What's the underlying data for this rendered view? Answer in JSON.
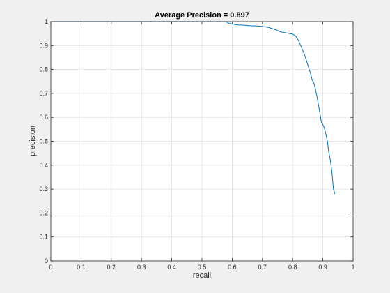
{
  "chart_data": {
    "type": "line",
    "title": "Average Precision = 0.897",
    "xlabel": "recall",
    "ylabel": "precision",
    "xlim": [
      0,
      1
    ],
    "ylim": [
      0,
      1
    ],
    "xticks": [
      0,
      0.1,
      0.2,
      0.3,
      0.4,
      0.5,
      0.6,
      0.7,
      0.8,
      0.9,
      1
    ],
    "yticks": [
      0,
      0.1,
      0.2,
      0.3,
      0.4,
      0.5,
      0.6,
      0.7,
      0.8,
      0.9,
      1
    ],
    "xtick_labels": [
      "0",
      "0.1",
      "0.2",
      "0.3",
      "0.4",
      "0.5",
      "0.6",
      "0.7",
      "0.8",
      "0.9",
      "1"
    ],
    "ytick_labels": [
      "0",
      "0.1",
      "0.2",
      "0.3",
      "0.4",
      "0.5",
      "0.6",
      "0.7",
      "0.8",
      "0.9",
      "1"
    ],
    "grid": true,
    "colors": {
      "line": "#0072bd",
      "background": "#f0f0f0",
      "axes_bg": "#ffffff",
      "grid": "#e0e0e0",
      "axis": "#262626"
    },
    "series": [
      {
        "x": [
          0.0,
          0.05,
          0.1,
          0.2,
          0.3,
          0.4,
          0.5,
          0.55,
          0.58,
          0.585,
          0.59,
          0.6,
          0.61,
          0.62,
          0.64,
          0.66,
          0.68,
          0.7,
          0.72,
          0.73,
          0.74,
          0.75,
          0.76,
          0.77,
          0.78,
          0.79,
          0.8,
          0.81,
          0.815,
          0.82,
          0.825,
          0.83,
          0.835,
          0.84,
          0.845,
          0.85,
          0.855,
          0.86,
          0.865,
          0.87,
          0.875,
          0.88,
          0.885,
          0.89,
          0.895,
          0.9,
          0.905,
          0.91,
          0.915,
          0.92,
          0.925,
          0.93,
          0.935,
          0.94
        ],
        "y": [
          1.0,
          1.0,
          1.0,
          1.0,
          1.0,
          1.0,
          1.0,
          1.0,
          1.0,
          0.995,
          0.993,
          0.99,
          0.988,
          0.986,
          0.985,
          0.983,
          0.982,
          0.98,
          0.976,
          0.972,
          0.968,
          0.963,
          0.957,
          0.955,
          0.953,
          0.95,
          0.948,
          0.94,
          0.93,
          0.92,
          0.905,
          0.89,
          0.875,
          0.86,
          0.84,
          0.82,
          0.8,
          0.78,
          0.755,
          0.745,
          0.72,
          0.69,
          0.655,
          0.62,
          0.58,
          0.57,
          0.555,
          0.53,
          0.5,
          0.45,
          0.42,
          0.37,
          0.3,
          0.28
        ]
      }
    ]
  }
}
